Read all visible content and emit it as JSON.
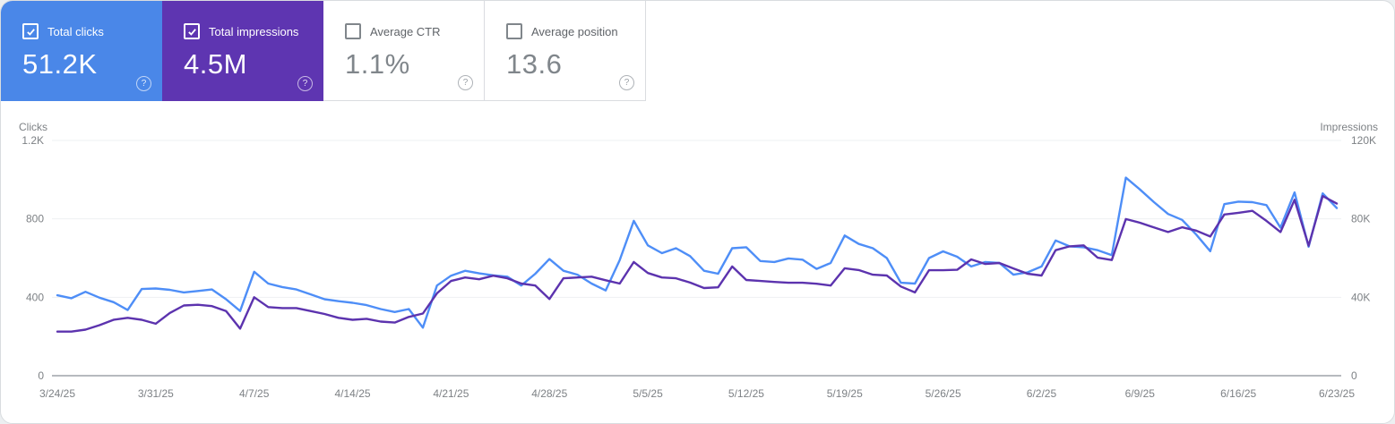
{
  "icons": {
    "help": "?"
  },
  "cards": [
    {
      "label": "Total clicks",
      "value": "51.2K",
      "selected": true,
      "color": "#4a87e8",
      "text_color": "#ffffff"
    },
    {
      "label": "Total impressions",
      "value": "4.5M",
      "selected": true,
      "color": "#5e35b1",
      "text_color": "#ffffff"
    },
    {
      "label": "Average CTR",
      "value": "1.1%",
      "selected": false
    },
    {
      "label": "Average position",
      "value": "13.6",
      "selected": false
    }
  ],
  "chart_data": {
    "type": "line",
    "frequency": "daily",
    "x_axis": {
      "start": "3/24/25",
      "end": "6/23/25",
      "tick_labels": [
        "3/24/25",
        "3/31/25",
        "4/7/25",
        "4/14/25",
        "4/21/25",
        "4/28/25",
        "5/5/25",
        "5/12/25",
        "5/19/25",
        "5/26/25",
        "6/2/25",
        "6/9/25",
        "6/16/25",
        "6/23/25"
      ]
    },
    "y_axis_left": {
      "label": "Clicks",
      "ticks": [
        "1.2K",
        "800",
        "400",
        "0"
      ],
      "max": 1200,
      "grid": true
    },
    "y_axis_right": {
      "label": "Impressions",
      "ticks": [
        "120K",
        "80K",
        "40K",
        "0"
      ],
      "max": 120000,
      "grid": true
    },
    "series": [
      {
        "name": "Total clicks",
        "axis": "left",
        "color": "#4e8ef7",
        "values": [
          410,
          395,
          428,
          398,
          375,
          335,
          442,
          445,
          438,
          425,
          432,
          440,
          390,
          330,
          530,
          470,
          452,
          440,
          415,
          390,
          380,
          372,
          360,
          340,
          325,
          340,
          245,
          460,
          510,
          535,
          522,
          512,
          505,
          460,
          520,
          595,
          535,
          515,
          470,
          435,
          590,
          790,
          665,
          625,
          650,
          610,
          535,
          520,
          650,
          655,
          585,
          580,
          598,
          592,
          545,
          575,
          715,
          672,
          650,
          600,
          474,
          470,
          600,
          634,
          607,
          557,
          580,
          575,
          515,
          527,
          557,
          690,
          660,
          655,
          640,
          615,
          1010,
          950,
          885,
          825,
          795,
          720,
          635,
          875,
          888,
          885,
          870,
          755,
          935,
          658,
          930,
          855
        ]
      },
      {
        "name": "Total impressions",
        "axis": "right",
        "color": "#5c33ae",
        "values": [
          22500,
          22500,
          23500,
          25800,
          28500,
          29500,
          28500,
          26500,
          32000,
          35800,
          36200,
          35500,
          33000,
          24000,
          40000,
          35000,
          34500,
          34500,
          33000,
          31500,
          29500,
          28500,
          29000,
          27600,
          27100,
          30000,
          31700,
          42000,
          48300,
          50100,
          49200,
          51000,
          49700,
          47000,
          46000,
          39100,
          49700,
          50100,
          50500,
          48700,
          47000,
          58000,
          52400,
          50100,
          49700,
          47500,
          44700,
          45100,
          55700,
          48800,
          48300,
          47800,
          47400,
          47400,
          46900,
          46000,
          54800,
          53900,
          51500,
          51100,
          45500,
          42500,
          53800,
          53800,
          54000,
          59300,
          57000,
          57500,
          54700,
          52000,
          51100,
          64000,
          66000,
          66500,
          60200,
          59000,
          79900,
          78000,
          75600,
          73300,
          75700,
          74000,
          71000,
          82200,
          83100,
          84100,
          79000,
          73300,
          89700,
          66300,
          91600,
          87800
        ]
      }
    ]
  }
}
